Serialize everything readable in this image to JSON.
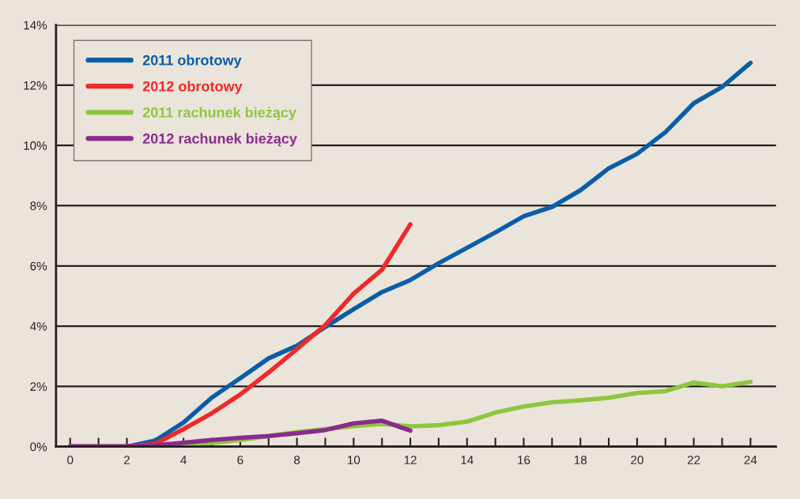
{
  "chart_data": {
    "type": "line",
    "x": [
      0,
      1,
      2,
      3,
      4,
      5,
      6,
      7,
      8,
      9,
      10,
      11,
      12,
      13,
      14,
      15,
      16,
      17,
      18,
      19,
      20,
      21,
      22,
      23,
      24
    ],
    "series": [
      {
        "name": "2011 obrotowy",
        "color": "#0a5ea8",
        "values": [
          0,
          0,
          0,
          0.2,
          0.8,
          1.63,
          2.27,
          2.93,
          3.35,
          3.97,
          4.56,
          5.13,
          5.53,
          6.09,
          6.6,
          7.11,
          7.65,
          7.96,
          8.51,
          9.24,
          9.72,
          10.44,
          11.4,
          11.94,
          12.74
        ]
      },
      {
        "name": "2012 obrotowy",
        "color": "#ee2a2a",
        "values": [
          0,
          0,
          0,
          0.09,
          0.58,
          1.11,
          1.73,
          2.46,
          3.24,
          4.04,
          5.08,
          5.87,
          7.38,
          null,
          null,
          null,
          null,
          null,
          null,
          null,
          null,
          null,
          null,
          null,
          null
        ]
      },
      {
        "name": "2011 rachunek bieżący",
        "color": "#8dc63f",
        "values": [
          null,
          null,
          null,
          0,
          0.02,
          0.12,
          0.22,
          0.35,
          0.48,
          0.58,
          0.68,
          0.75,
          0.67,
          0.71,
          0.83,
          1.13,
          1.33,
          1.47,
          1.54,
          1.62,
          1.78,
          1.84,
          2.13,
          2.0,
          2.15
        ]
      },
      {
        "name": "2012 rachunek bieżący",
        "color": "#8b2a8f",
        "values": [
          0,
          0,
          0,
          0.04,
          0.13,
          0.22,
          0.29,
          0.35,
          0.44,
          0.55,
          0.77,
          0.86,
          0.53,
          null,
          null,
          null,
          null,
          null,
          null,
          null,
          null,
          null,
          null,
          null,
          null
        ]
      }
    ],
    "xlim": [
      -0.5,
      24.9
    ],
    "xticks": [
      0,
      {
        "value": 1,
        "label": null
      },
      2,
      {
        "value": 3,
        "label": null
      },
      4,
      {
        "value": 5,
        "label": null
      },
      6,
      {
        "value": 7,
        "label": null
      },
      8,
      {
        "value": 9,
        "label": null
      },
      10,
      {
        "value": 11,
        "label": null
      },
      12,
      {
        "value": 13,
        "label": null
      },
      14,
      {
        "value": 15,
        "label": null
      },
      16,
      {
        "value": 17,
        "label": null
      },
      18,
      {
        "value": 19,
        "label": null
      },
      20,
      {
        "value": 21,
        "label": null
      },
      22,
      {
        "value": 23,
        "label": null
      },
      24
    ],
    "ylim": [
      0,
      14
    ],
    "yticks": [
      {
        "value": 0,
        "label": "0%"
      },
      {
        "value": 2,
        "label": "2%"
      },
      {
        "value": 4,
        "label": "4%"
      },
      {
        "value": 6,
        "label": "6%"
      },
      {
        "value": 8,
        "label": "8%"
      },
      {
        "value": 10,
        "label": "10%"
      },
      {
        "value": 12,
        "label": "12%"
      },
      {
        "value": 14,
        "label": "14%"
      }
    ],
    "grid": "y",
    "legend": "top left",
    "marker": "none",
    "line_style": "solid"
  }
}
